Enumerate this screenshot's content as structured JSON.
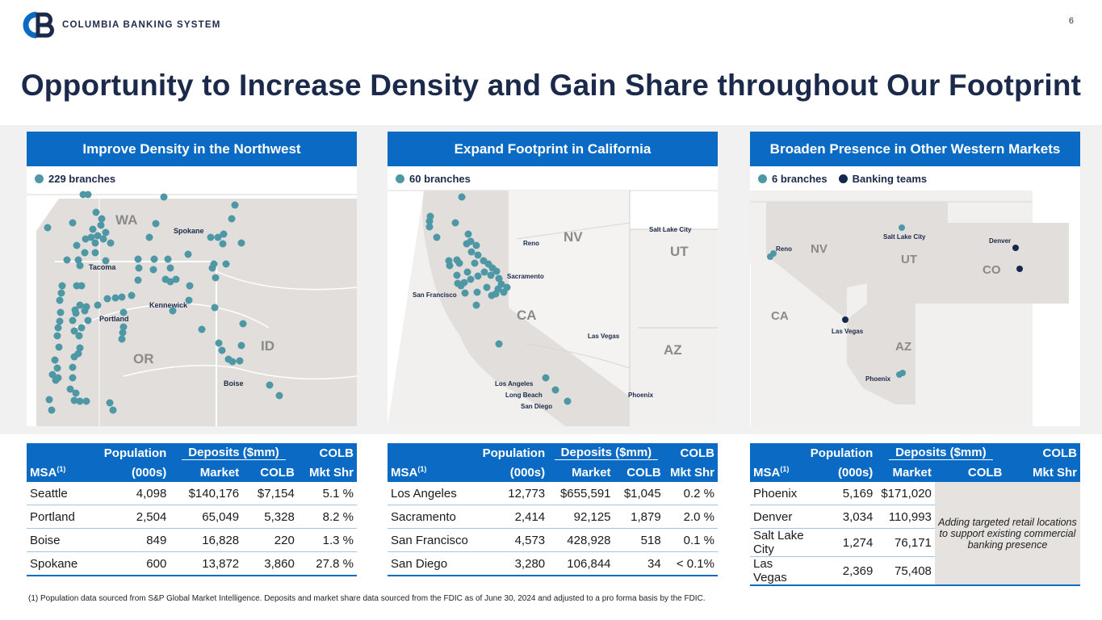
{
  "header": {
    "logo_text": "COLUMBIA BANKING SYSTEM",
    "page_number": "6",
    "title": "Opportunity to Increase Density and Gain Share throughout Our Footprint"
  },
  "colors": {
    "brand_blue": "#0b6bc4",
    "navy": "#1b2a4a",
    "branch_teal": "#4e98a6",
    "team_navy": "#14294d"
  },
  "panels": [
    {
      "heading": "Improve Density in the Northwest",
      "legend": [
        "229 branches"
      ],
      "map_states": [
        "WA",
        "OR",
        "ID"
      ],
      "map_cities": [
        "Spokane",
        "Tacoma",
        "Kennewick",
        "Portland",
        "Boise"
      ],
      "table": {
        "h_population": "Population",
        "h_deposits": "Deposits ($mm)",
        "h_colb": "COLB",
        "h_msa": "MSA",
        "h_sup": "(1)",
        "h_units": "(000s)",
        "h_market": "Market",
        "h_colb2": "COLB",
        "h_mktshr": "Mkt Shr",
        "rows": [
          {
            "msa": "Seattle",
            "pop": "4,098",
            "market": "$140,176",
            "colb": "$7,154",
            "share": "5.1 %"
          },
          {
            "msa": "Portland",
            "pop": "2,504",
            "market": "65,049",
            "colb": "5,328",
            "share": "8.2 %"
          },
          {
            "msa": "Boise",
            "pop": "849",
            "market": "16,828",
            "colb": "220",
            "share": "1.3 %"
          },
          {
            "msa": "Spokane",
            "pop": "600",
            "market": "13,872",
            "colb": "3,860",
            "share": "27.8 %"
          }
        ]
      }
    },
    {
      "heading": "Expand Footprint in California",
      "legend": [
        "60 branches"
      ],
      "map_states": [
        "NV",
        "UT",
        "CA",
        "AZ"
      ],
      "map_cities": [
        "Salt Lake City",
        "Reno",
        "Sacramento",
        "San Francisco",
        "Las Vegas",
        "Los Angeles",
        "Long Beach",
        "San Diego",
        "Phoenix"
      ],
      "table": {
        "h_population": "Population",
        "h_deposits": "Deposits ($mm)",
        "h_colb": "COLB",
        "h_msa": "MSA",
        "h_sup": "(1)",
        "h_units": "(000s)",
        "h_market": "Market",
        "h_colb2": "COLB",
        "h_mktshr": "Mkt Shr",
        "rows": [
          {
            "msa": "Los Angeles",
            "pop": "12,773",
            "market": "$655,591",
            "colb": "$1,045",
            "share": "0.2 %"
          },
          {
            "msa": "Sacramento",
            "pop": "2,414",
            "market": "92,125",
            "colb": "1,879",
            "share": "2.0 %"
          },
          {
            "msa": "San Francisco",
            "pop": "4,573",
            "market": "428,928",
            "colb": "518",
            "share": "0.1 %"
          },
          {
            "msa": "San Diego",
            "pop": "3,280",
            "market": "106,844",
            "colb": "34",
            "share": "< 0.1%"
          }
        ]
      }
    },
    {
      "heading": "Broaden Presence in Other Western Markets",
      "legend": [
        "6 branches",
        "Banking teams"
      ],
      "map_states": [
        "NV",
        "UT",
        "CO",
        "CA",
        "AZ"
      ],
      "map_cities": [
        "Reno",
        "Salt Lake City",
        "Denver",
        "Las Vegas",
        "Phoenix"
      ],
      "table": {
        "h_population": "Population",
        "h_deposits": "Deposits ($mm)",
        "h_colb": "COLB",
        "h_msa": "MSA",
        "h_sup": "(1)",
        "h_units": "(000s)",
        "h_market": "Market",
        "h_colb2": "COLB",
        "h_mktshr": "Mkt Shr",
        "note": "Adding targeted retail locations to support existing commercial banking presence",
        "rows": [
          {
            "msa": "Phoenix",
            "pop": "5,169",
            "market": "$171,020"
          },
          {
            "msa": "Denver",
            "pop": "3,034",
            "market": "110,993"
          },
          {
            "msa": "Salt Lake City",
            "pop": "1,274",
            "market": "76,171"
          },
          {
            "msa": "Las Vegas",
            "pop": "2,369",
            "market": "75,408"
          }
        ]
      }
    }
  ],
  "footnote": "(1)   Population data sourced from S&P Global Market Intelligence. Deposits and market share data sourced from the FDIC as of June 30, 2024 and adjusted to a pro forma basis by the FDIC."
}
